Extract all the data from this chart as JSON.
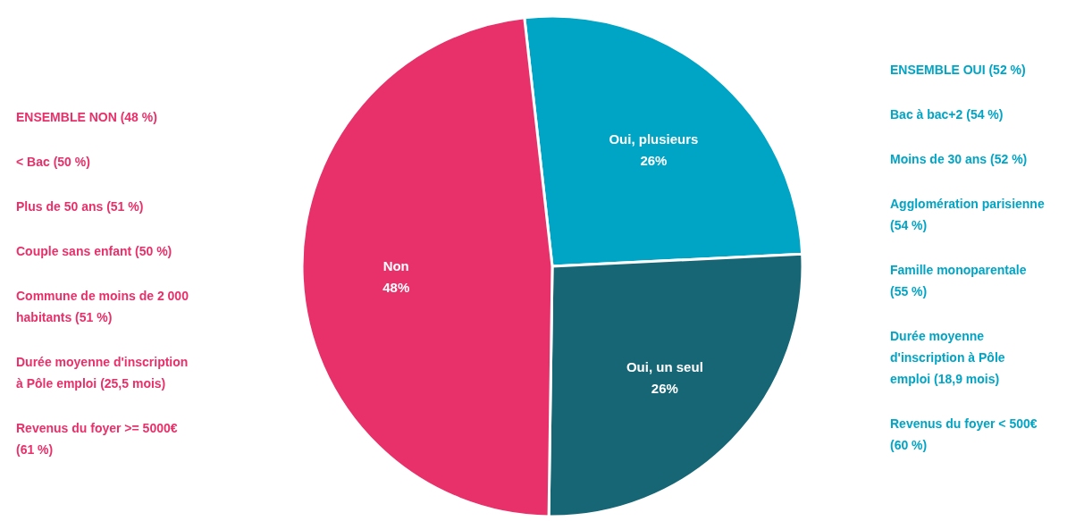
{
  "chart_data": {
    "type": "pie",
    "categories": [
      "Oui, plusieurs",
      "Oui, un seul",
      "Non"
    ],
    "values": [
      26,
      26,
      48
    ],
    "value_labels": [
      "26%",
      "26%",
      "48%"
    ],
    "colors": [
      "#00a5c6",
      "#176676",
      "#e8306a"
    ],
    "annotations": [
      "ENSEMBLE NON (48 %)",
      "< Bac (50 %)",
      "Plus de 50 ans (51 %)",
      "Couple sans enfant (50 %)",
      "Commune de moins de 2 000 habitants (51 %)",
      "Durée moyenne d'inscription à Pôle emploi (25,5 mois)",
      "Revenus du foyer >= 5000€ (61 %)",
      "ENSEMBLE OUI (52 %)",
      "Bac à bac+2  (54 %)",
      "Moins de 30 ans (52 %)",
      "Agglomération parisienne (54 %)",
      "Famille monoparentale (55 %)",
      "Durée moyenne d'inscription à Pôle emploi (18,9 mois)",
      "Revenus du foyer < 500€ (60 %)"
    ]
  }
}
